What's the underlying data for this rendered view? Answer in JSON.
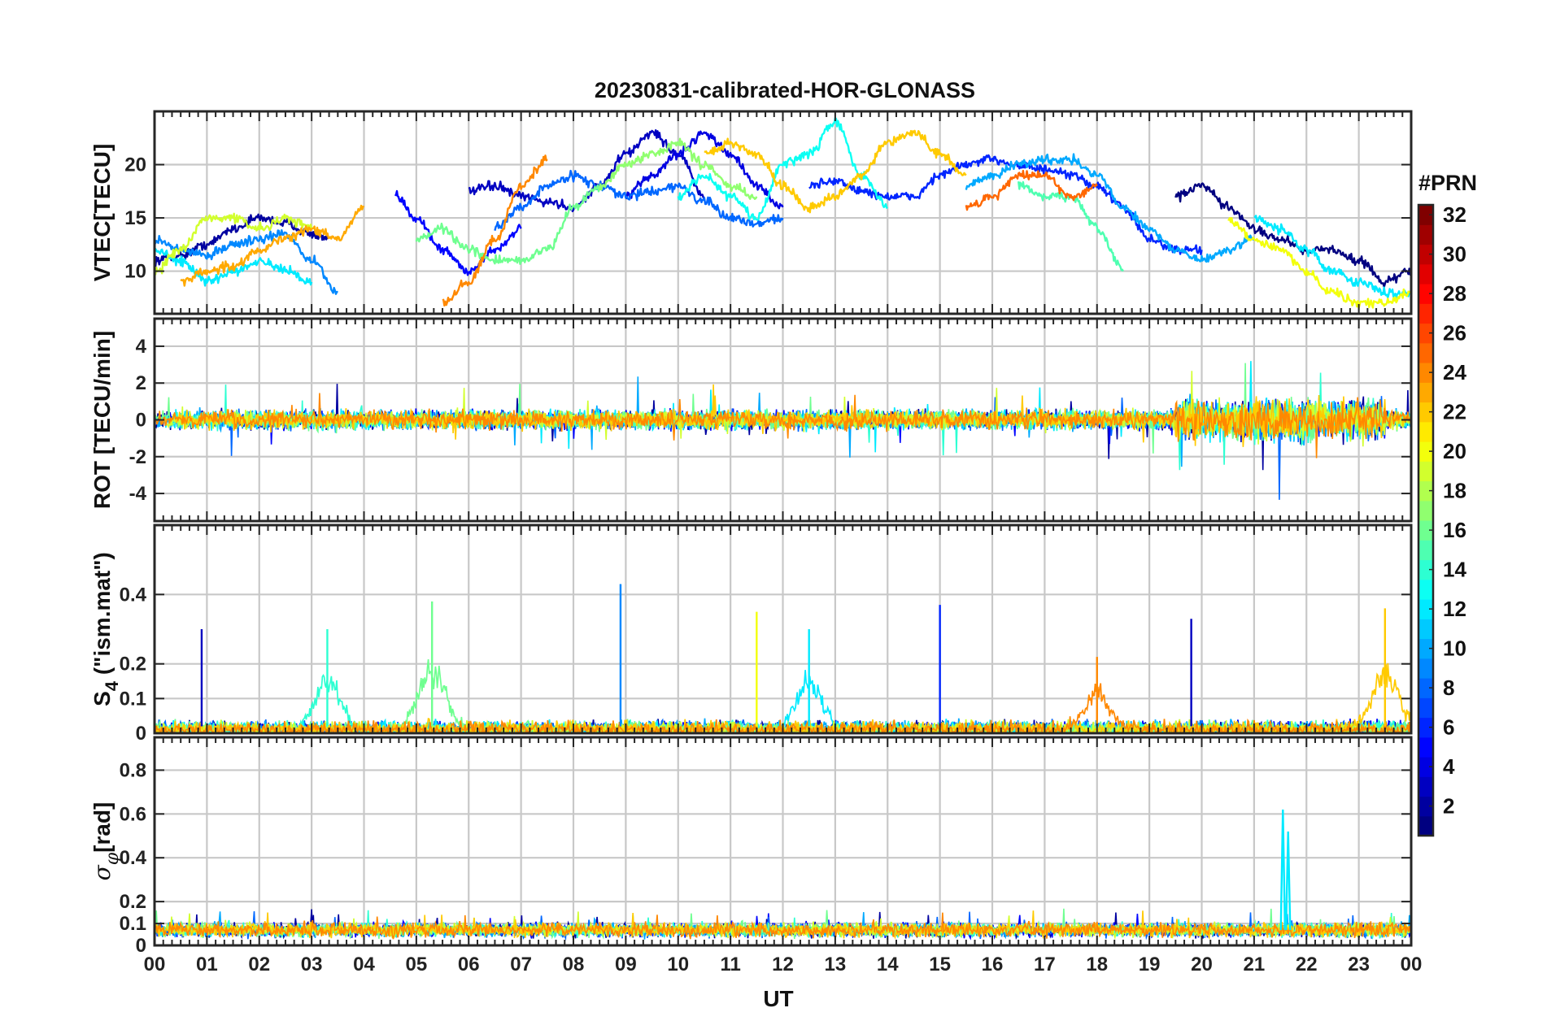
{
  "chart_data": {
    "type": "line",
    "title": "20230831-calibrated-HOR-GLONASS",
    "xlabel": "UT",
    "x_ticks": [
      "00",
      "01",
      "02",
      "03",
      "04",
      "05",
      "06",
      "07",
      "08",
      "09",
      "10",
      "11",
      "12",
      "13",
      "14",
      "15",
      "16",
      "17",
      "18",
      "19",
      "20",
      "21",
      "22",
      "23",
      "00"
    ],
    "xlim": [
      0,
      24
    ],
    "colormap": "jet",
    "colorbar": {
      "label": "#PRN",
      "range": [
        1,
        32
      ],
      "ticks": [
        2,
        4,
        6,
        8,
        10,
        12,
        14,
        16,
        18,
        20,
        22,
        24,
        26,
        28,
        30,
        32
      ]
    },
    "panels": [
      {
        "id": "vtec",
        "ylabel": "VTEC[TECU]",
        "ylim": [
          6,
          25
        ],
        "yticks": [
          10,
          15,
          20
        ],
        "series": [
          {
            "prn": 2,
            "x": [
              0,
              0.5,
              1,
              1.5,
              2,
              2.5,
              3,
              3.3
            ],
            "y": [
              11,
              11.5,
              12.5,
              14,
              15,
              14.5,
              13.5,
              13
            ]
          },
          {
            "prn": 5,
            "x": [
              4.6,
              5.0,
              5.5,
              6.0,
              6.5,
              7.0
            ],
            "y": [
              17,
              15,
              12,
              10,
              12,
              14
            ]
          },
          {
            "prn": 3,
            "x": [
              6.0,
              6.5,
              7.0,
              7.5,
              8.0,
              8.5,
              9.0,
              9.5,
              10.0,
              10.5
            ],
            "y": [
              17.5,
              18,
              17,
              16.5,
              16,
              18,
              21,
              23,
              21,
              17
            ]
          },
          {
            "prn": 4,
            "x": [
              9.0,
              9.5,
              10.0,
              10.5,
              11.0,
              11.5,
              12.0
            ],
            "y": [
              17,
              19,
              21,
              23,
              21,
              18,
              16
            ]
          },
          {
            "prn": 6,
            "x": [
              12.5,
              13.0,
              13.5,
              14.0,
              14.5,
              15.0,
              15.5,
              16.0,
              16.5,
              17.0,
              17.5,
              18.0,
              18.5,
              19.0,
              19.5,
              20.0
            ],
            "y": [
              18,
              18.5,
              17.5,
              17,
              17,
              19,
              20,
              20.5,
              20,
              19.5,
              19,
              18,
              16,
              13,
              12,
              12
            ]
          },
          {
            "prn": 1,
            "x": [
              19.5,
              20.0,
              20.5,
              21.0,
              21.5,
              22.0,
              22.5,
              23.0,
              23.5,
              24.0
            ],
            "y": [
              17,
              18,
              16,
              14,
              13,
              12,
              12,
              11,
              9,
              10
            ]
          },
          {
            "prn": 9,
            "x": [
              0,
              0.5,
              1.0,
              1.5,
              2.0,
              2.5,
              3.0,
              3.5
            ],
            "y": [
              13,
              12,
              11.5,
              12.5,
              13,
              13.5,
              11,
              8
            ]
          },
          {
            "prn": 8,
            "x": [
              6.5,
              7.0,
              7.5,
              8.0,
              8.5,
              9.0,
              9.5,
              10.0,
              10.5,
              11.0,
              11.5,
              12.0
            ],
            "y": [
              14,
              16,
              18,
              19,
              18,
              17,
              17.5,
              18,
              16.5,
              15,
              14.5,
              15
            ]
          },
          {
            "prn": 10,
            "x": [
              15.5,
              16.0,
              16.5,
              17.0,
              17.5,
              18.0,
              18.5,
              19.0,
              19.5,
              20.0,
              20.5,
              21.0
            ],
            "y": [
              18,
              19,
              20,
              20.5,
              20.5,
              19,
              16,
              14,
              12,
              11,
              12,
              13
            ]
          },
          {
            "prn": 12,
            "x": [
              0,
              0.5,
              1.0,
              1.5,
              2.0,
              2.5,
              3.0
            ],
            "y": [
              12,
              11,
              9,
              10,
              11,
              10,
              9
            ]
          },
          {
            "prn": 13,
            "x": [
              10.0,
              10.5,
              11.0,
              11.5,
              12.0,
              12.5,
              13.0,
              13.5,
              14.0
            ],
            "y": [
              17,
              19,
              17,
              15,
              20,
              21,
              24,
              19,
              16
            ]
          },
          {
            "prn": 12,
            "x": [
              21.0,
              21.5,
              22.0,
              22.5,
              23.0,
              23.5,
              24.0
            ],
            "y": [
              15,
              14,
              12,
              10,
              9,
              8,
              8
            ]
          },
          {
            "prn": 16,
            "x": [
              5.0,
              5.5,
              6.0,
              6.5,
              7.0,
              7.5,
              8.0,
              8.5
            ],
            "y": [
              13,
              14,
              12,
              11,
              11,
              12,
              16,
              18
            ]
          },
          {
            "prn": 15,
            "x": [
              16.5,
              17.0,
              17.5,
              18.0,
              18.5
            ],
            "y": [
              18,
              17,
              17,
              14,
              10
            ]
          },
          {
            "prn": 17,
            "x": [
              8.5,
              9.0,
              9.5,
              10.0,
              10.5,
              11.0,
              11.5
            ],
            "y": [
              18,
              20,
              21,
              22,
              20,
              18,
              17
            ]
          },
          {
            "prn": 19,
            "x": [
              0,
              0.5,
              1.0,
              1.5,
              2.0,
              2.5,
              3.0
            ],
            "y": [
              10,
              12,
              15,
              15,
              14,
              15,
              14
            ]
          },
          {
            "prn": 20,
            "x": [
              20.5,
              21.0,
              21.5,
              22.0,
              22.5,
              23.0,
              23.5,
              24.0
            ],
            "y": [
              15,
              13,
              12,
              10,
              8,
              7,
              7,
              8
            ]
          },
          {
            "prn": 22,
            "x": [
              10.5,
              11.0,
              11.5,
              12.0,
              12.5,
              13.0,
              13.5,
              14.0,
              14.5,
              15.0,
              15.5
            ],
            "y": [
              21,
              22,
              21,
              18,
              16,
              17,
              19,
              22,
              23,
              21,
              19
            ]
          },
          {
            "prn": 23,
            "x": [
              0.5,
              1.0,
              1.5,
              2.0,
              2.5,
              3.0,
              3.5,
              4.0
            ],
            "y": [
              9,
              10,
              10.5,
              12,
              13,
              14,
              13,
              16
            ]
          },
          {
            "prn": 24,
            "x": [
              5.5,
              6.0,
              6.5,
              7.0,
              7.5
            ],
            "y": [
              7,
              9,
              13,
              18,
              20.5
            ]
          },
          {
            "prn": 25,
            "x": [
              15.5,
              16.0,
              16.5,
              17.0,
              17.5,
              18.0
            ],
            "y": [
              16,
              17,
              19,
              19,
              17,
              18
            ]
          }
        ]
      },
      {
        "id": "rot",
        "ylabel": "ROT [TECU/min]",
        "ylim": [
          -5.5,
          5.5
        ],
        "yticks": [
          -4,
          -2,
          0,
          2,
          4
        ],
        "noise": {
          "prn_palette": [
            2,
            5,
            8,
            10,
            12,
            14,
            16,
            19,
            22,
            24
          ],
          "typical_amplitude": 0.4,
          "extreme_min": -4.8,
          "extreme_max": 3.2
        }
      },
      {
        "id": "s4",
        "ylabel": "S4 (\"ism.mat\")",
        "ylim": [
          0,
          0.6
        ],
        "yticks": [
          0,
          0.1,
          0.2,
          0.4
        ],
        "ytick_labels": [
          "0",
          "0.1",
          "0.2",
          "0.4"
        ],
        "peaks": [
          {
            "prn": 3,
            "x": 0.9,
            "y": 0.3
          },
          {
            "prn": 14,
            "x": 3.3,
            "y": 0.3
          },
          {
            "prn": 16,
            "x": 5.3,
            "y": 0.38
          },
          {
            "prn": 9,
            "x": 8.9,
            "y": 0.43
          },
          {
            "prn": 20,
            "x": 11.5,
            "y": 0.35
          },
          {
            "prn": 12,
            "x": 12.5,
            "y": 0.3
          },
          {
            "prn": 6,
            "x": 15.0,
            "y": 0.37
          },
          {
            "prn": 24,
            "x": 18.0,
            "y": 0.22
          },
          {
            "prn": 3,
            "x": 19.8,
            "y": 0.33
          },
          {
            "prn": 22,
            "x": 23.5,
            "y": 0.36
          }
        ]
      },
      {
        "id": "sigma_phi",
        "ylabel": "σφ[rad]",
        "ylim": [
          0,
          0.95
        ],
        "yticks": [
          0,
          0.1,
          0.2,
          0.4,
          0.6,
          0.8
        ],
        "ytick_labels": [
          "0",
          "0.1",
          "0.2",
          "0.4",
          "0.6",
          "0.8"
        ],
        "spikes": [
          {
            "prn": 12,
            "x": 21.55,
            "y": 0.62
          },
          {
            "prn": 12,
            "x": 21.65,
            "y": 0.52
          }
        ],
        "baseline": 0.07
      }
    ]
  }
}
